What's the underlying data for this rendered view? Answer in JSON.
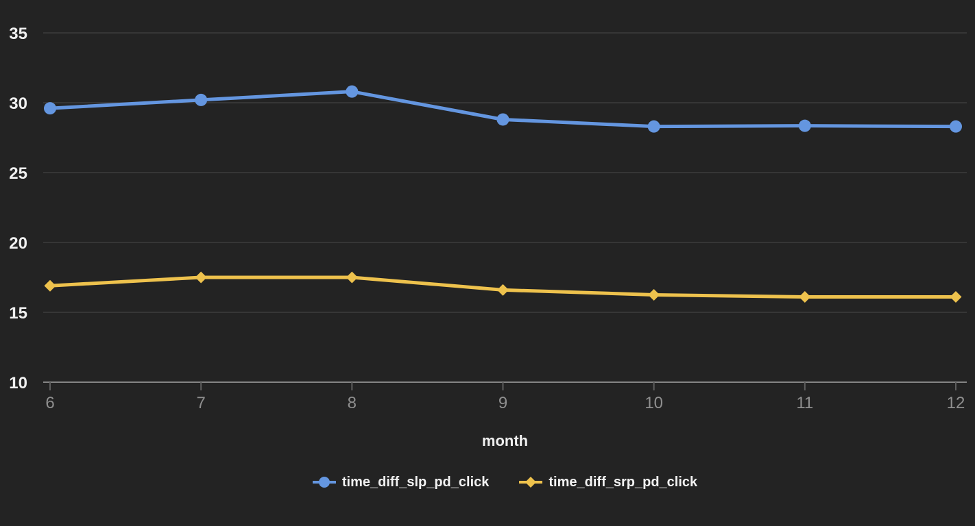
{
  "chart_data": {
    "type": "line",
    "title": "",
    "xlabel": "month",
    "ylabel": "",
    "x": [
      6,
      7,
      8,
      9,
      10,
      11,
      12
    ],
    "x_tick_labels": [
      "6",
      "7",
      "8",
      "9",
      "10",
      "11",
      "12"
    ],
    "y_ticks": [
      10,
      15,
      20,
      25,
      30,
      35
    ],
    "y_tick_labels": [
      "10",
      "15",
      "20",
      "25",
      "30",
      "35"
    ],
    "xlim": [
      6,
      12
    ],
    "ylim": [
      10,
      35
    ],
    "grid": true,
    "legend_position": "bottom",
    "series": [
      {
        "name": "time_diff_slp_pd_click",
        "marker": "circle",
        "color": "#6496E0",
        "values": [
          29.6,
          30.2,
          30.8,
          28.8,
          28.3,
          28.35,
          28.3
        ]
      },
      {
        "name": "time_diff_srp_pd_click",
        "marker": "diamond",
        "color": "#EEC24D",
        "values": [
          16.9,
          17.5,
          17.5,
          16.6,
          16.25,
          16.1,
          16.1
        ]
      }
    ]
  },
  "style": {
    "background_color": "#232323",
    "grid_color": "#3d3d3d",
    "axis_line_color": "#858585",
    "tick_mark_color": "#5e5e5e",
    "x_tick_label_color": "#8f8f8f",
    "y_tick_label_color": "#f0f0f0",
    "axis_title_color": "#f0f0f0",
    "legend_text_color": "#f2f2f2"
  }
}
